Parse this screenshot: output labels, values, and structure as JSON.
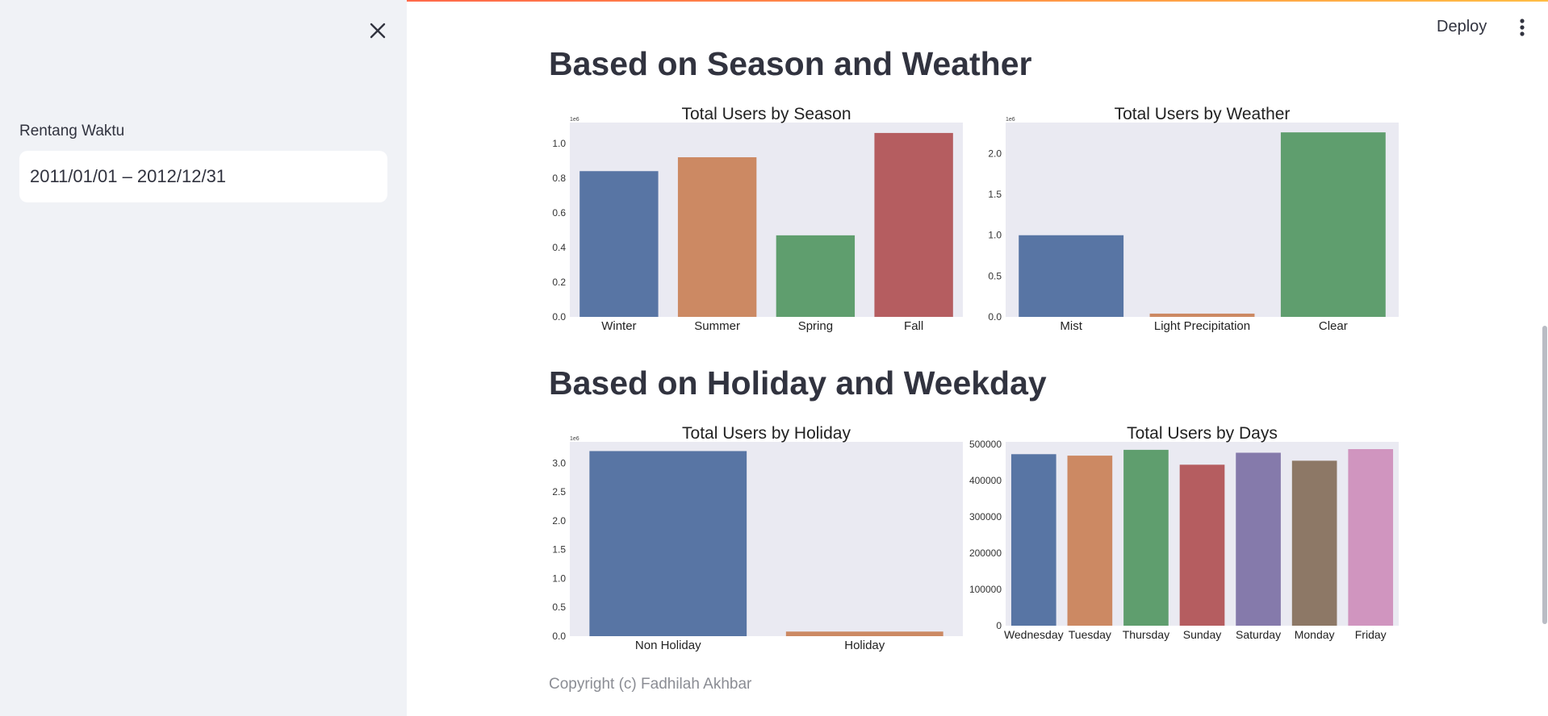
{
  "sidebar": {
    "date_label": "Rentang Waktu",
    "date_value": "2011/01/01 – 2012/12/31",
    "close_icon": "close-icon"
  },
  "header": {
    "deploy_label": "Deploy",
    "menu_icon": "more-vertical-icon"
  },
  "sections": {
    "season_weather_title": "Based on Season and Weather",
    "holiday_weekday_title": "Based on Holiday and Weekday"
  },
  "footer": {
    "text": "Copyright (c) Fadhilah Akhbar"
  },
  "colors": {
    "plot_bg": "#eaeaf2",
    "palette": [
      "#5875a4",
      "#cc8963",
      "#5f9e6e",
      "#b55d60",
      "#857aab",
      "#8d7866",
      "#d095bf"
    ]
  },
  "chart_data": [
    {
      "id": "season",
      "type": "bar",
      "title": "Total Users by Season",
      "categories": [
        "Winter",
        "Summer",
        "Spring",
        "Fall"
      ],
      "values": [
        0.84,
        0.92,
        0.47,
        1.06
      ],
      "ylim": [
        0,
        1.12
      ],
      "yticks": [
        0.0,
        0.2,
        0.4,
        0.6,
        0.8,
        1.0
      ],
      "tick_labels": [
        "0.0",
        "0.2",
        "0.4",
        "0.6",
        "0.8",
        "1.0"
      ],
      "offset_label": "1e6",
      "xlabel": "",
      "ylabel": ""
    },
    {
      "id": "weather",
      "type": "bar",
      "title": "Total Users by Weather",
      "categories": [
        "Mist",
        "Light Precipitation",
        "Clear"
      ],
      "values": [
        1.0,
        0.04,
        2.26
      ],
      "ylim": [
        0,
        2.38
      ],
      "yticks": [
        0.0,
        0.5,
        1.0,
        1.5,
        2.0
      ],
      "tick_labels": [
        "0.0",
        "0.5",
        "1.0",
        "1.5",
        "2.0"
      ],
      "offset_label": "1e6",
      "xlabel": "",
      "ylabel": ""
    },
    {
      "id": "holiday",
      "type": "bar",
      "title": "Total Users by Holiday",
      "categories": [
        "Non Holiday",
        "Holiday"
      ],
      "values": [
        3.21,
        0.08
      ],
      "ylim": [
        0,
        3.37
      ],
      "yticks": [
        0.0,
        0.5,
        1.0,
        1.5,
        2.0,
        2.5,
        3.0
      ],
      "tick_labels": [
        "0.0",
        "0.5",
        "1.0",
        "1.5",
        "2.0",
        "2.5",
        "3.0"
      ],
      "offset_label": "1e6",
      "xlabel": "",
      "ylabel": ""
    },
    {
      "id": "days",
      "type": "bar",
      "title": "Total Users by Days",
      "categories": [
        "Wednesday",
        "Tuesday",
        "Thursday",
        "Sunday",
        "Saturday",
        "Monday",
        "Friday"
      ],
      "values": [
        473000,
        469000,
        485000,
        444000,
        477000,
        455000,
        487000
      ],
      "ylim": [
        0,
        507000
      ],
      "yticks": [
        0,
        100000,
        200000,
        300000,
        400000,
        500000
      ],
      "tick_labels": [
        "0",
        "100000",
        "200000",
        "300000",
        "400000",
        "500000"
      ],
      "offset_label": "",
      "xlabel": "",
      "ylabel": ""
    }
  ]
}
